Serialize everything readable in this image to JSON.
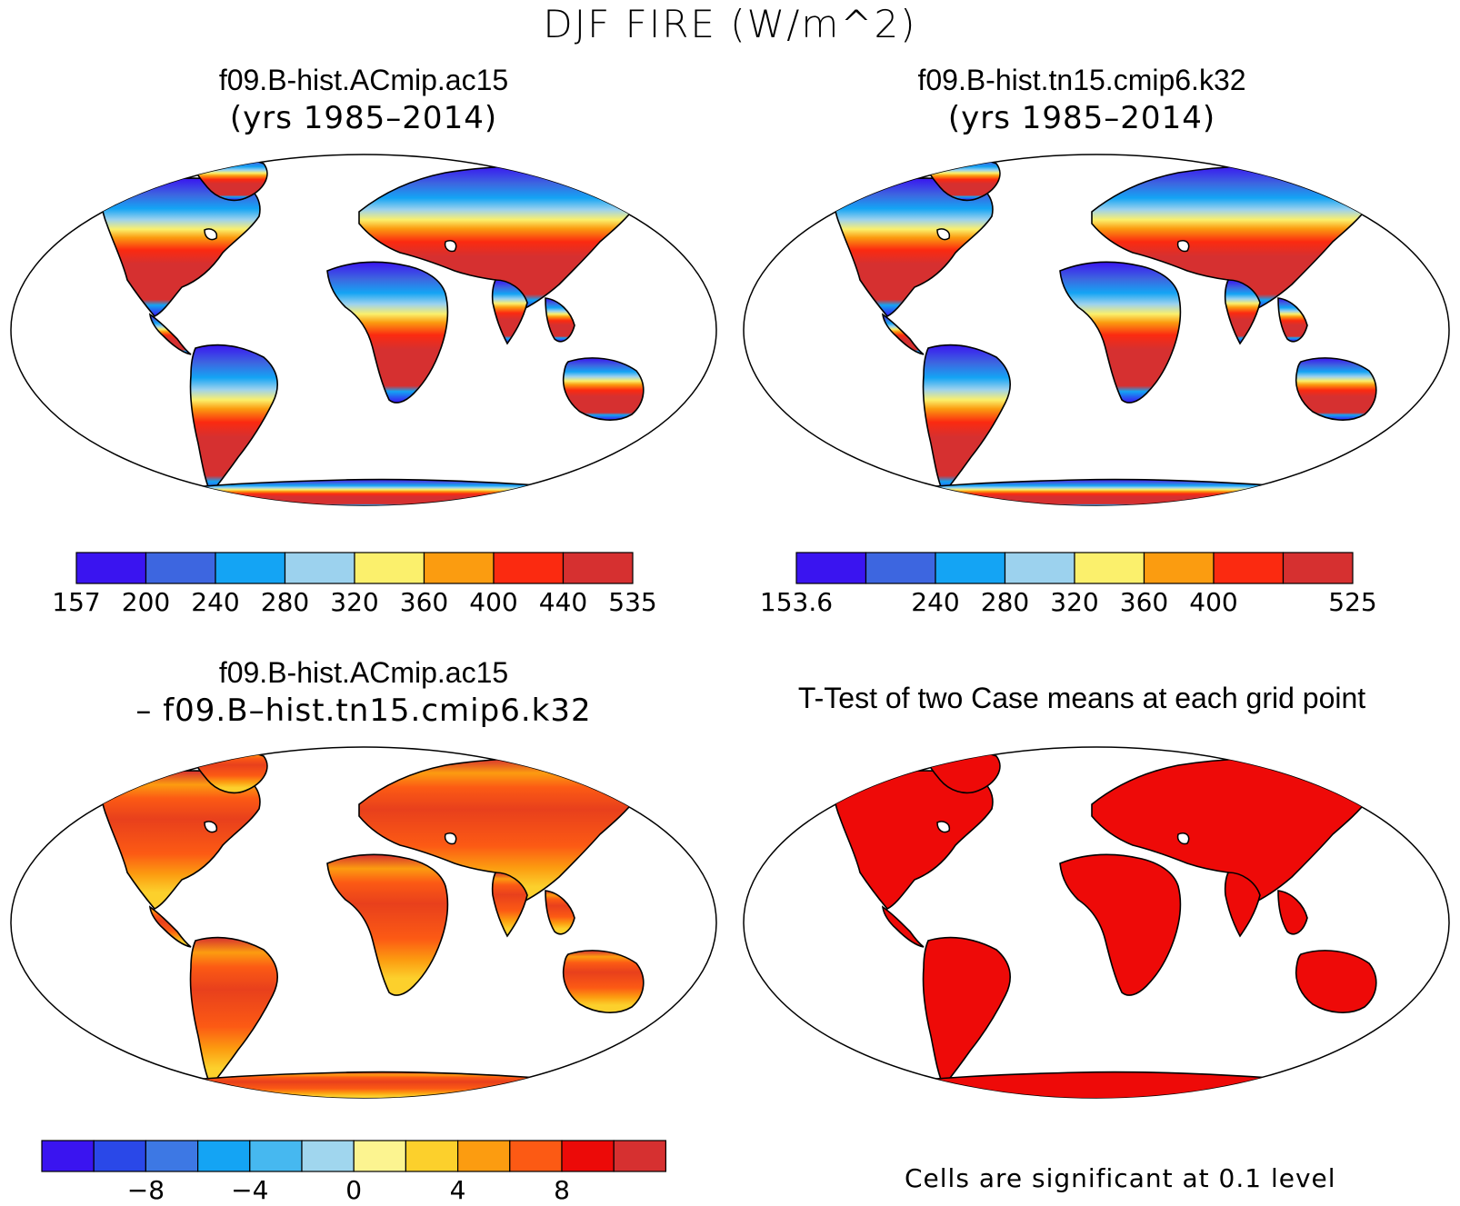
{
  "title": "DJF FIRE (W/m^2)",
  "panels": [
    {
      "id": "p1",
      "title": "f09.B-hist.ACmip.ac15",
      "subtitle": "(yrs 1985–2014)",
      "scheme": "abs"
    },
    {
      "id": "p2",
      "title": "f09.B-hist.tn15.cmip6.k32",
      "subtitle": "(yrs 1985–2014)",
      "scheme": "abs"
    },
    {
      "id": "p3",
      "title": "f09.B-hist.ACmip.ac15",
      "subtitle": "– f09.B–hist.tn15.cmip6.k32",
      "scheme": "diff"
    },
    {
      "id": "p4",
      "title": "T-Test of two Case means at each grid point",
      "subtitle": "",
      "scheme": "ttest"
    }
  ],
  "colorbars": {
    "cb1": {
      "colors": [
        "#3a14f0",
        "#3d66e0",
        "#14a4f4",
        "#9cd2ee",
        "#fbf06c",
        "#fb9c10",
        "#fb2a10",
        "#d63030"
      ],
      "labels": [
        "157",
        "200",
        "240",
        "280",
        "320",
        "360",
        "400",
        "440",
        "535"
      ]
    },
    "cb2": {
      "colors": [
        "#3a14f0",
        "#3d66e0",
        "#14a4f4",
        "#9cd2ee",
        "#fbf06c",
        "#fb9c10",
        "#fb2a10",
        "#d63030"
      ],
      "labels": [
        "153.6",
        "",
        "240",
        "280",
        "320",
        "360",
        "400",
        "",
        "525"
      ]
    },
    "cb3": {
      "colors": [
        "#3a14f0",
        "#2a48e8",
        "#3d78e4",
        "#14a4f4",
        "#46b8f0",
        "#a0d6ee",
        "#fcf490",
        "#fcd02c",
        "#fc9c10",
        "#fc5a14",
        "#ec0a08",
        "#d63030"
      ],
      "labels": [
        "−8",
        "−4",
        "0",
        "4",
        "8"
      ]
    }
  },
  "note": "Cells are significant at 0.1 level",
  "colors": {
    "ttest_red": "#ee0a08",
    "land_outline": "#000000"
  }
}
